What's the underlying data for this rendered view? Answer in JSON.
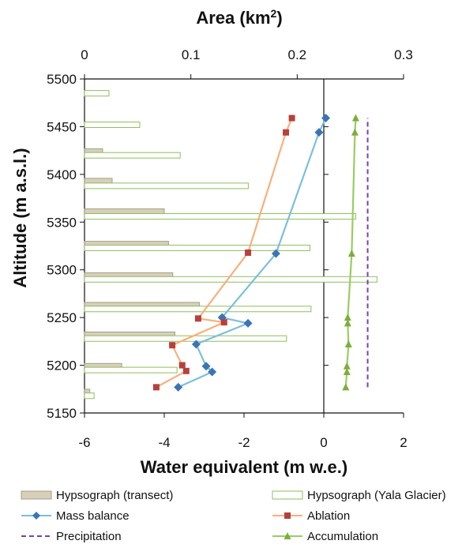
{
  "chart_data": {
    "type": "bar",
    "top_axis": {
      "title": "Area (km",
      "title_sup": "2",
      "title_end": ")",
      "range": [
        0,
        0.3
      ],
      "ticks": [
        0,
        0.1,
        0.2,
        0.3
      ],
      "tick_labels": [
        "0",
        "0.1",
        "0.2",
        "0.3"
      ]
    },
    "bottom_axis": {
      "title": "Water equivalent (m w.e.)",
      "range": [
        -6,
        2
      ],
      "ticks": [
        -6,
        -4,
        -2,
        0,
        2
      ],
      "tick_labels": [
        "-6",
        "-4",
        "-2",
        "0",
        "2"
      ]
    },
    "left_axis": {
      "title": "Altitude (m a.s.l.)",
      "range": [
        5150,
        5500
      ],
      "ticks": [
        5150,
        5200,
        5250,
        5300,
        5350,
        5400,
        5450,
        5500
      ],
      "tick_labels": [
        "5150",
        "5200",
        "5250",
        "5300",
        "5350",
        "5400",
        "5450",
        "5500"
      ]
    },
    "grid": false,
    "legend_position": "bottom",
    "series": [
      {
        "name": "Hypsograph (transect)",
        "kind": "bar",
        "axis": "area",
        "color": "#d6cfba",
        "stroke": "#a89f86",
        "points": [
          {
            "altitude": 5172,
            "area": 0.005
          },
          {
            "altitude": 5199,
            "area": 0.035
          },
          {
            "altitude": 5232,
            "area": 0.085
          },
          {
            "altitude": 5263,
            "area": 0.108
          },
          {
            "altitude": 5294,
            "area": 0.083
          },
          {
            "altitude": 5327,
            "area": 0.079
          },
          {
            "altitude": 5361,
            "area": 0.075
          },
          {
            "altitude": 5393,
            "area": 0.026
          },
          {
            "altitude": 5424,
            "area": 0.017
          }
        ]
      },
      {
        "name": "Hypsograph (Yala Glacier)",
        "kind": "bar",
        "axis": "area",
        "color": "#ffffff",
        "stroke": "#8dbf5a",
        "points": [
          {
            "altitude": 5168,
            "area": 0.009
          },
          {
            "altitude": 5195,
            "area": 0.087
          },
          {
            "altitude": 5228,
            "area": 0.19
          },
          {
            "altitude": 5259,
            "area": 0.213
          },
          {
            "altitude": 5290,
            "area": 0.275
          },
          {
            "altitude": 5323,
            "area": 0.212
          },
          {
            "altitude": 5356,
            "area": 0.255
          },
          {
            "altitude": 5388,
            "area": 0.154
          },
          {
            "altitude": 5420,
            "area": 0.09
          },
          {
            "altitude": 5452,
            "area": 0.052
          },
          {
            "altitude": 5485,
            "area": 0.023
          }
        ]
      },
      {
        "name": "Mass balance",
        "kind": "line",
        "axis": "water",
        "color": "#7bbfdc",
        "marker_color": "#3b74b4",
        "marker": "diamond",
        "points": [
          {
            "x": -3.65,
            "y": 5177
          },
          {
            "x": -2.8,
            "y": 5193
          },
          {
            "x": -2.95,
            "y": 5199
          },
          {
            "x": -3.2,
            "y": 5222
          },
          {
            "x": -1.9,
            "y": 5244
          },
          {
            "x": -2.55,
            "y": 5250
          },
          {
            "x": -1.2,
            "y": 5317
          },
          {
            "x": -0.12,
            "y": 5444
          },
          {
            "x": 0.05,
            "y": 5459
          }
        ]
      },
      {
        "name": "Ablation",
        "kind": "line",
        "axis": "water",
        "color": "#f8b07a",
        "marker_color": "#b8403c",
        "marker": "square",
        "points": [
          {
            "x": -4.2,
            "y": 5177
          },
          {
            "x": -3.45,
            "y": 5194
          },
          {
            "x": -3.55,
            "y": 5200
          },
          {
            "x": -3.8,
            "y": 5221
          },
          {
            "x": -2.5,
            "y": 5245
          },
          {
            "x": -3.15,
            "y": 5249
          },
          {
            "x": -1.9,
            "y": 5318
          },
          {
            "x": -0.95,
            "y": 5444
          },
          {
            "x": -0.8,
            "y": 5459
          }
        ]
      },
      {
        "name": "Precipitation",
        "kind": "line",
        "axis": "water",
        "dashed": true,
        "color": "#7a3fb0",
        "points": [
          {
            "x": 1.1,
            "y": 5177
          },
          {
            "x": 1.1,
            "y": 5459
          }
        ]
      },
      {
        "name": "Accumulation",
        "kind": "line",
        "axis": "water",
        "color": "#9ccb62",
        "marker_color": "#7cae3c",
        "marker": "triangle",
        "points": [
          {
            "x": 0.55,
            "y": 5177
          },
          {
            "x": 0.58,
            "y": 5193
          },
          {
            "x": 0.58,
            "y": 5199
          },
          {
            "x": 0.62,
            "y": 5222
          },
          {
            "x": 0.6,
            "y": 5244
          },
          {
            "x": 0.6,
            "y": 5250
          },
          {
            "x": 0.7,
            "y": 5317
          },
          {
            "x": 0.78,
            "y": 5444
          },
          {
            "x": 0.8,
            "y": 5459
          }
        ]
      }
    ]
  }
}
